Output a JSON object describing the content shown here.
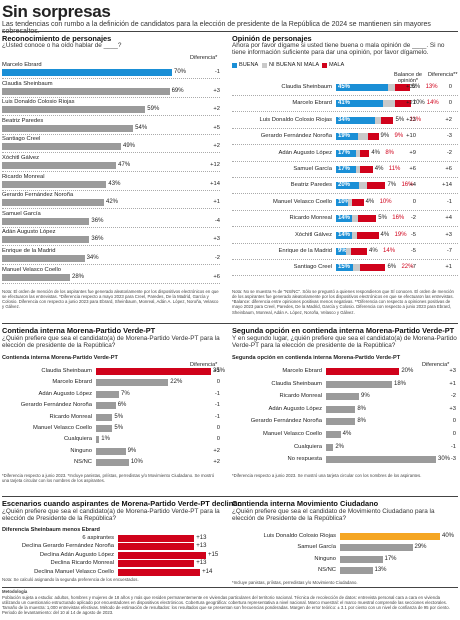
{
  "header": {
    "title": "Sin sorpresas",
    "subtitle": "Las tendencias con rumbo a la definición de candidatos para la elección de presidente de la República de 2024 se mantienen sin mayores sobresaltos."
  },
  "recognition": {
    "title": "Reconocimiento de personajes",
    "question": "¿Usted conoce o ha oído hablar de ____?",
    "dif_header": "Diferencia*",
    "items": [
      {
        "name": "Marcelo Ebrard",
        "value": 70,
        "label": "70%",
        "dif": "-1"
      },
      {
        "name": "Claudia Sheinbaum",
        "value": 69,
        "label": "69%",
        "dif": "+3"
      },
      {
        "name": "Luis Donaldo Colosio Riojas",
        "value": 59,
        "label": "59%",
        "dif": "+2"
      },
      {
        "name": "Beatriz Paredes",
        "value": 54,
        "label": "54%",
        "dif": "+5"
      },
      {
        "name": "Santiago Creel",
        "value": 49,
        "label": "49%",
        "dif": "+2"
      },
      {
        "name": "Xóchitl Gálvez",
        "value": 47,
        "label": "47%",
        "dif": "+12"
      },
      {
        "name": "Ricardo Monreal",
        "value": 43,
        "label": "43%",
        "dif": "+14"
      },
      {
        "name": "Gerardo Fernández Noroña",
        "value": 42,
        "label": "42%",
        "dif": "+1"
      },
      {
        "name": "Samuel García",
        "value": 36,
        "label": "36%",
        "dif": "-4"
      },
      {
        "name": "Adán Augusto López",
        "value": 36,
        "label": "36%",
        "dif": "+3"
      },
      {
        "name": "Enrique de la Madrid",
        "value": 34,
        "label": "34%",
        "dif": "-2"
      },
      {
        "name": "Manuel Velasco Coello",
        "value": 28,
        "label": "28%",
        "dif": "+6"
      }
    ],
    "notes": "Nota: El orden de mención de los aspirantes fue generado aleatoriamente por los dispositivos electrónicos en que se efectuaron las entrevistas. *Diferencia respecto a mayo 2023 para Creel, Paredes, De la Madrid, García y Colosio. Diferencia con respecto a junio 2023 para Ebrard, Sheinbaum, Monreal, Adán A. López, Noroña, Velasco y Gálvez."
  },
  "opinion": {
    "title": "Opinión de personajes",
    "question": "Ahora por favor dígame si usted tiene buena o mala opinión de ____. Si no tiene información suficiente para dar una opinión, por favor dígamelo.",
    "legend": [
      "BUENA",
      "NI BUENA NI MALA",
      "MALA"
    ],
    "balance_header": "Balance de opinión*",
    "dif_header": "Diferencia**",
    "items": [
      {
        "name": "Claudia Sheinbaum",
        "buena": 45,
        "ni": 6,
        "mala": 13,
        "buena_label": "45%",
        "ni_label": "6%",
        "mala_label": "13%",
        "balance": "+32",
        "dif": "0"
      },
      {
        "name": "Marcelo Ebrard",
        "buena": 41,
        "ni": 10,
        "mala": 14,
        "buena_label": "41%",
        "ni_label": "10%",
        "mala_label": "14%",
        "balance": "+27",
        "dif": "0"
      },
      {
        "name": "Luis Donaldo Colosio Riojas",
        "buena": 34,
        "ni": 5,
        "mala": 11,
        "buena_label": "34%",
        "ni_label": "5%",
        "mala_label": "11%",
        "balance": "+23",
        "dif": "+2"
      },
      {
        "name": "Gerardo Fernández Noroña",
        "buena": 19,
        "ni": 9,
        "mala": 9,
        "buena_label": "19%",
        "ni_label": "9%",
        "mala_label": "9%",
        "balance": "+10",
        "dif": "-3"
      },
      {
        "name": "Adán Augusto López",
        "buena": 17,
        "ni": 4,
        "mala": 8,
        "buena_label": "17%",
        "ni_label": "4%",
        "mala_label": "8%",
        "balance": "+9",
        "dif": "-2"
      },
      {
        "name": "Samuel García",
        "buena": 17,
        "ni": 4,
        "mala": 11,
        "buena_label": "17%",
        "ni_label": "4%",
        "mala_label": "11%",
        "balance": "+6",
        "dif": "+6"
      },
      {
        "name": "Beatriz Paredes",
        "buena": 20,
        "ni": 7,
        "mala": 16,
        "buena_label": "20%",
        "ni_label": "7%",
        "mala_label": "16%",
        "balance": "+4",
        "dif": "+14"
      },
      {
        "name": "Manuel Velasco Coello",
        "buena": 10,
        "ni": 4,
        "mala": 10,
        "buena_label": "10%",
        "ni_label": "4%",
        "mala_label": "10%",
        "balance": "0",
        "dif": "-1"
      },
      {
        "name": "Ricardo Monreal",
        "buena": 14,
        "ni": 5,
        "mala": 16,
        "buena_label": "14%",
        "ni_label": "5%",
        "mala_label": "16%",
        "balance": "-2",
        "dif": "+4"
      },
      {
        "name": "Xóchitl Gálvez",
        "buena": 14,
        "ni": 4,
        "mala": 19,
        "buena_label": "14%",
        "ni_label": "4%",
        "mala_label": "19%",
        "balance": "-5",
        "dif": "+3"
      },
      {
        "name": "Enrique de la Madrid",
        "buena": 9,
        "ni": 4,
        "mala": 14,
        "buena_label": "9%",
        "ni_label": "4%",
        "mala_label": "14%",
        "balance": "-5",
        "dif": "-7"
      },
      {
        "name": "Santiago Creel",
        "buena": 15,
        "ni": 6,
        "mala": 22,
        "buena_label": "15%",
        "ni_label": "6%",
        "mala_label": "22%",
        "balance": "-7",
        "dif": "+1"
      }
    ],
    "notes": "Nota: No se muestra % de \"NS/NC\". Sólo se preguntó a quienes respondieron que SÍ conocen. El orden de mención de los aspirantes fue generado aleatoriamente por los dispositivos electrónicos en que se efectuaron las entrevistas. *Balance: diferencia entre opiniones positivas menos negativas. **Diferencia con respecto a opiniones positivas de mayo 2023 para Creel, Paredes, De la Madrid, García y Colosio. Diferencia con respecto a junio 2023 para Ebrard, Sheinbaum, Monreal, Adán A. López, Noroña, Velasco y Gálvez."
  },
  "morena_first": {
    "title": "Contienda interna Morena-Partido Verde-PT",
    "question": "¿Quién prefiere que sea el candidato(a) de Morena-Partido Verde-PT para la elección de presidente de la República?",
    "chart_title": "Contienda interna Morena-Partido Verde-PT",
    "dif_header": "Diferencia*",
    "items": [
      {
        "name": "Claudia Sheinbaum",
        "value": 35,
        "label": "35%",
        "dif": "+1"
      },
      {
        "name": "Marcelo Ebrard",
        "value": 22,
        "label": "22%",
        "dif": "0"
      },
      {
        "name": "Adán Augusto López",
        "value": 7,
        "label": "7%",
        "dif": "-1"
      },
      {
        "name": "Gerardo Fernández Noroña",
        "value": 6,
        "label": "6%",
        "dif": "-1"
      },
      {
        "name": "Ricardo Monreal",
        "value": 5,
        "label": "5%",
        "dif": "-1"
      },
      {
        "name": "Manuel Velasco Coello",
        "value": 5,
        "label": "5%",
        "dif": "0"
      },
      {
        "name": "Cualquiera",
        "value": 1,
        "label": "1%",
        "dif": "0"
      },
      {
        "name": "Ninguno",
        "value": 9,
        "label": "9%",
        "dif": "+2"
      },
      {
        "name": "NS/NC",
        "value": 10,
        "label": "10%",
        "dif": "+2"
      }
    ],
    "notes": "*Diferencia respecto a junio 2023. *Incluye panistas, priístas, perredistas y/o Movimiento Ciudadano. Se mostró una tarjeta circular con los nombres de los aspirantes."
  },
  "morena_second": {
    "title": "Segunda opción en contienda interna Morena-Partido Verde-PT",
    "question": "Y en segundo lugar, ¿quién prefiere que sea el candidato(a) de Morena-Partido Verde-PT para la elección de presidente de la República?",
    "chart_title": "Segunda opción en contienda interna Morena-Partido Verde-PT",
    "dif_header": "Diferencia*",
    "items": [
      {
        "name": "Marcelo Ebrard",
        "value": 20,
        "label": "20%",
        "dif": "+3"
      },
      {
        "name": "Claudia Sheinbaum",
        "value": 18,
        "label": "18%",
        "dif": "+1"
      },
      {
        "name": "Ricardo Monreal",
        "value": 9,
        "label": "9%",
        "dif": "-2"
      },
      {
        "name": "Adán Augusto López",
        "value": 8,
        "label": "8%",
        "dif": "+3"
      },
      {
        "name": "Gerardo Fernández Noroña",
        "value": 8,
        "label": "8%",
        "dif": "0"
      },
      {
        "name": "Manuel Velasco Coello",
        "value": 4,
        "label": "4%",
        "dif": "0"
      },
      {
        "name": "Cualquiera",
        "value": 2,
        "label": "2%",
        "dif": "-1"
      },
      {
        "name": "No respuesta",
        "value": 30,
        "label": "30%",
        "dif": "-3"
      }
    ],
    "notes": "*Diferencia respecto a junio 2023. Se mostró una tarjeta circular con los nombres de los aspirantes."
  },
  "scenarios": {
    "title": "Escenarios cuando aspirantes de Morena-Partido Verde-PT declinan",
    "question": "¿Quién prefiere que sea el candidato(a) de Morena-Partido Verde-PT para la elección de Presidente de la República?",
    "chart_title": "Diferencia Sheinbaum menos Ebrard",
    "items": [
      {
        "name": "6 aspirantes",
        "value": 13,
        "label": "+13"
      },
      {
        "name": "Declina Gerardo Fernández Noroña",
        "value": 13,
        "label": "+13"
      },
      {
        "name": "Declina Adán Augusto López",
        "value": 15,
        "label": "+15"
      },
      {
        "name": "Declina Ricardo Monreal",
        "value": 13,
        "label": "+13"
      },
      {
        "name": "Declina Manuel Velasco Coello",
        "value": 14,
        "label": "+14"
      }
    ],
    "notes": "Nota: Se calculó asignando la segunda preferencia de los encuestados."
  },
  "mc": {
    "title": "Contienda interna Movimiento Ciudadano",
    "question": "¿Quién prefiere que sea el candidato de Movimiento Ciudadano para la elección de Presidente de la República?",
    "items": [
      {
        "name": "Luis Donaldo Colosio Riojas",
        "value": 40,
        "label": "40%"
      },
      {
        "name": "Samuel García",
        "value": 29,
        "label": "29%"
      },
      {
        "name": "Ninguno",
        "value": 17,
        "label": "17%"
      },
      {
        "name": "NS/NC",
        "value": 13,
        "label": "13%"
      }
    ],
    "notes": "*Incluye panistas, priístas, perredistas y/o Movimiento Ciudadano."
  },
  "methodology": {
    "title": "Metodología",
    "text": "Población sujeta a estudio: adultos, hombres y mujeres de 18 años y más que residen permanentemente en viviendas particulares del territorio nacional. Técnica de recolección de datos: entrevista personal cara a cara en vivienda utilizando un cuestionario estructurado aplicado por encuestadores en dispositivos electrónicos. Cobertura geográfica: cobertura representativa a nivel nacional. Marco muestral: el marco muestral comprende las secciones electorales. Tamaño de la muestra: 1,000 entrevistas efectivas. Método de estimación de resultados: los resultados que se presentan son frecuencias ponderadas. Margen de error teórico: ± 3.1 por ciento con un nivel de confianza de 95 por ciento. Periodo de levantamiento: del 10 al 14 de agosto de 2023."
  },
  "chart_data": [
    {
      "type": "bar",
      "title": "Reconocimiento de personajes",
      "categories": [
        "Marcelo Ebrard",
        "Claudia Sheinbaum",
        "Luis Donaldo Colosio Riojas",
        "Beatriz Paredes",
        "Santiago Creel",
        "Xóchitl Gálvez",
        "Ricardo Monreal",
        "Gerardo Fernández Noroña",
        "Samuel García",
        "Adán Augusto López",
        "Enrique de la Madrid",
        "Manuel Velasco Coello"
      ],
      "values": [
        70,
        69,
        59,
        54,
        49,
        47,
        43,
        42,
        36,
        36,
        34,
        28
      ]
    },
    {
      "type": "bar",
      "title": "Opinión de personajes",
      "categories": [
        "Claudia Sheinbaum",
        "Marcelo Ebrard",
        "Luis Donaldo Colosio Riojas",
        "Gerardo Fernández Noroña",
        "Adán Augusto López",
        "Samuel García",
        "Beatriz Paredes",
        "Manuel Velasco Coello",
        "Ricardo Monreal",
        "Xóchitl Gálvez",
        "Enrique de la Madrid",
        "Santiago Creel"
      ],
      "series": [
        {
          "name": "BUENA",
          "values": [
            45,
            41,
            34,
            19,
            17,
            17,
            20,
            10,
            14,
            14,
            9,
            15
          ]
        },
        {
          "name": "NI BUENA NI MALA",
          "values": [
            6,
            10,
            5,
            9,
            4,
            4,
            7,
            4,
            5,
            4,
            4,
            6
          ]
        },
        {
          "name": "MALA",
          "values": [
            13,
            14,
            11,
            9,
            8,
            11,
            16,
            10,
            16,
            19,
            14,
            22
          ]
        }
      ]
    },
    {
      "type": "bar",
      "title": "Contienda interna Morena-Partido Verde-PT",
      "categories": [
        "Claudia Sheinbaum",
        "Marcelo Ebrard",
        "Adán Augusto López",
        "Gerardo Fernández Noroña",
        "Ricardo Monreal",
        "Manuel Velasco Coello",
        "Cualquiera",
        "Ninguno",
        "NS/NC"
      ],
      "values": [
        35,
        22,
        7,
        6,
        5,
        5,
        1,
        9,
        10
      ]
    },
    {
      "type": "bar",
      "title": "Segunda opción en contienda interna Morena-Partido Verde-PT",
      "categories": [
        "Marcelo Ebrard",
        "Claudia Sheinbaum",
        "Ricardo Monreal",
        "Adán Augusto López",
        "Gerardo Fernández Noroña",
        "Manuel Velasco Coello",
        "Cualquiera",
        "No respuesta"
      ],
      "values": [
        20,
        18,
        9,
        8,
        8,
        4,
        2,
        30
      ]
    },
    {
      "type": "bar",
      "title": "Diferencia Sheinbaum menos Ebrard",
      "categories": [
        "6 aspirantes",
        "Declina Gerardo Fernández Noroña",
        "Declina Adán Augusto López",
        "Declina Ricardo Monreal",
        "Declina Manuel Velasco Coello"
      ],
      "values": [
        13,
        13,
        15,
        13,
        14
      ]
    },
    {
      "type": "bar",
      "title": "Contienda interna Movimiento Ciudadano",
      "categories": [
        "Luis Donaldo Colosio Riojas",
        "Samuel García",
        "Ninguno",
        "NS/NC"
      ],
      "values": [
        40,
        29,
        17,
        13
      ]
    }
  ]
}
